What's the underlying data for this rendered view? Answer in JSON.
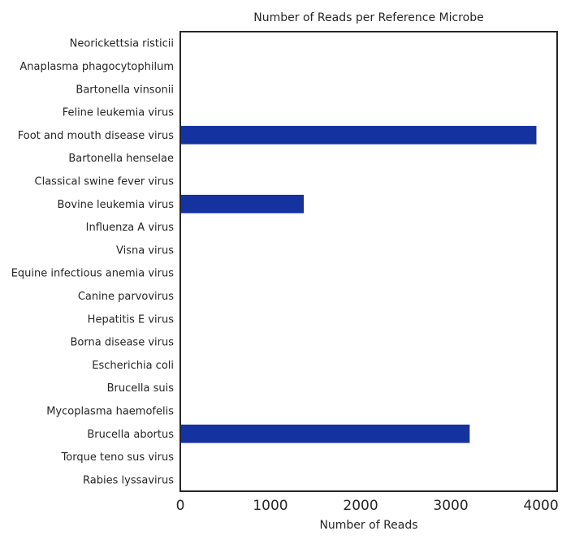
{
  "chart_data": {
    "type": "bar",
    "orientation": "horizontal",
    "title": "Number of Reads per Reference Microbe",
    "xlabel": "Number of Reads",
    "ylabel": "",
    "categories": [
      "Neorickettsia risticii",
      "Anaplasma phagocytophilum",
      "Bartonella vinsonii",
      "Feline leukemia virus",
      "Foot and mouth disease virus",
      "Bartonella henselae",
      "Classical swine fever virus",
      "Bovine leukemia virus",
      "Influenza A virus",
      "Visna virus",
      "Equine infectious anemia virus",
      "Canine parvovirus",
      "Hepatitis E virus",
      "Borna disease virus",
      "Escherichia coli",
      "Brucella suis",
      "Mycoplasma haemofelis",
      "Brucella abortus",
      "Torque teno sus virus",
      "Rabies lyssavirus"
    ],
    "values": [
      0,
      0,
      0,
      0,
      3950,
      0,
      0,
      1370,
      0,
      0,
      0,
      0,
      0,
      0,
      0,
      0,
      0,
      3210,
      0,
      0
    ],
    "xlim": [
      0,
      4180
    ],
    "xticks": [
      0,
      1000,
      2000,
      3000,
      4000
    ],
    "grid": false,
    "legend": "none",
    "bar_color": "#1432a0",
    "frame_color": "#262626"
  }
}
